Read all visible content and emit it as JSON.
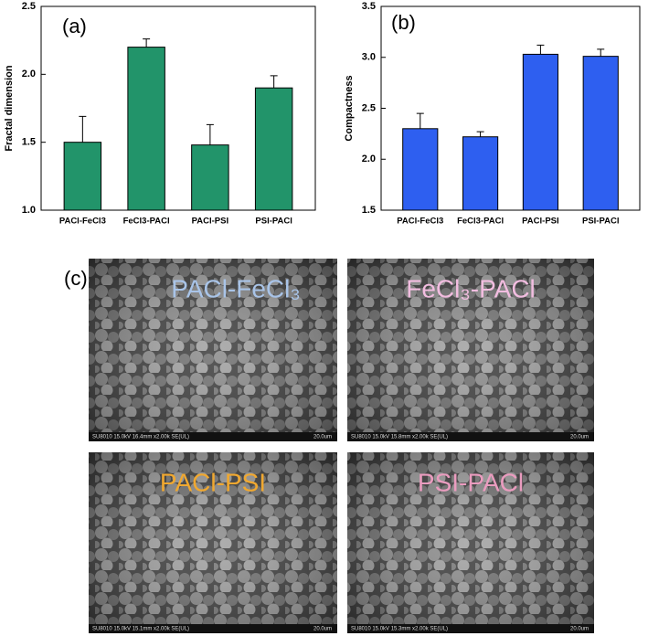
{
  "chart_data": [
    {
      "type": "bar",
      "panel": "(a)",
      "y_label": "Fractal dimension",
      "categories": [
        "PACl-FeCl3",
        "FeCl3-PACl",
        "PACl-PSI",
        "PSI-PACl"
      ],
      "values": [
        1.5,
        2.2,
        1.48,
        1.9
      ],
      "errors": [
        0.19,
        0.06,
        0.15,
        0.09
      ],
      "color": "#22946a",
      "ylim": [
        1.0,
        2.5
      ],
      "yticks": [
        {
          "value": 1.0,
          "label": "1.0"
        },
        {
          "value": 1.5,
          "label": "1.5"
        },
        {
          "value": 2.0,
          "label": "2.0"
        },
        {
          "value": 2.5,
          "label": "2.5"
        }
      ]
    },
    {
      "type": "bar",
      "panel": "(b)",
      "y_label": "Compactness",
      "categories": [
        "PACl-FeCl3",
        "FeCl3-PACl",
        "PACl-PSI",
        "PSI-PACl"
      ],
      "values": [
        2.3,
        2.22,
        3.03,
        3.01
      ],
      "errors": [
        0.15,
        0.05,
        0.09,
        0.07
      ],
      "color": "#2e5ff0",
      "ylim": [
        1.5,
        3.5
      ],
      "yticks": [
        {
          "value": 1.5,
          "label": "1.5"
        },
        {
          "value": 2.0,
          "label": "2.0"
        },
        {
          "value": 2.5,
          "label": "2.5"
        },
        {
          "value": 3.0,
          "label": "3.0"
        },
        {
          "value": 3.5,
          "label": "3.5"
        }
      ]
    }
  ],
  "panel_c": {
    "label": "(c)",
    "images": [
      {
        "label": "PACl-FeCl₃",
        "footer": "SU8010 15.0kV 16.4mm x2.00k SE(UL)",
        "scale": "20.0um"
      },
      {
        "label": "FeCl₃-PACl",
        "footer": "SU8010 15.0kV 15.8mm x2.00k SE(UL)",
        "scale": "20.0um"
      },
      {
        "label": "PACl-PSI",
        "footer": "SU8010 15.0kV 15.1mm x2.00k SE(UL)",
        "scale": "20.0um"
      },
      {
        "label": "PSI-PACl",
        "footer": "SU8010 15.0kV 15.3mm x2.00k SE(UL)",
        "scale": "20.0um"
      }
    ]
  }
}
